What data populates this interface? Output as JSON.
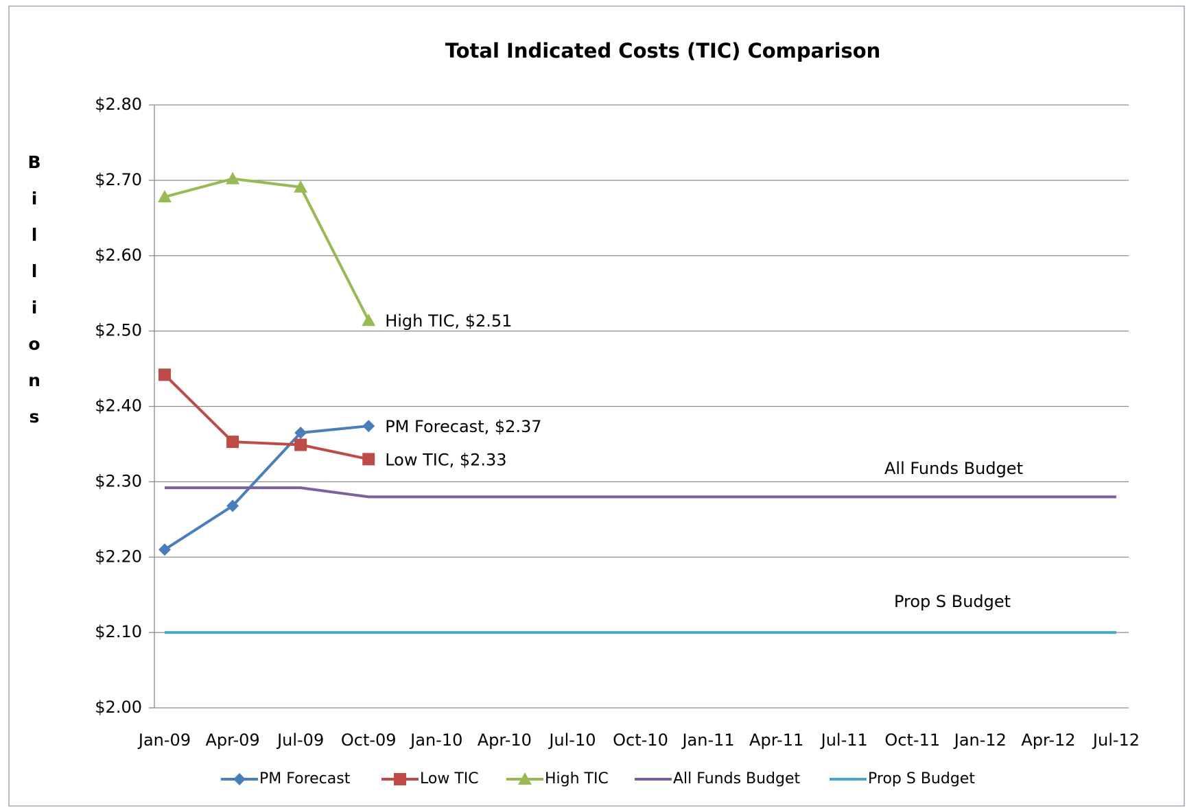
{
  "chart_data": {
    "type": "line",
    "title": "Total Indicated Costs (TIC) Comparison",
    "y_label": "Billions",
    "categories": [
      "Jan-09",
      "Apr-09",
      "Jul-09",
      "Oct-09",
      "Jan-10",
      "Apr-10",
      "Jul-10",
      "Oct-10",
      "Jan-11",
      "Apr-11",
      "Jul-11",
      "Oct-11",
      "Jan-12",
      "Apr-12",
      "Jul-12"
    ],
    "ylim": [
      2.0,
      2.8
    ],
    "yticks": [
      {
        "value": 2.0,
        "label": "$2.00"
      },
      {
        "value": 2.1,
        "label": "$2.10"
      },
      {
        "value": 2.2,
        "label": "$2.20"
      },
      {
        "value": 2.3,
        "label": "$2.30"
      },
      {
        "value": 2.4,
        "label": "$2.40"
      },
      {
        "value": 2.5,
        "label": "$2.50"
      },
      {
        "value": 2.6,
        "label": "$2.60"
      },
      {
        "value": 2.7,
        "label": "$2.70"
      },
      {
        "value": 2.8,
        "label": "$2.80"
      }
    ],
    "grid": true,
    "legend": "bottom",
    "series": [
      {
        "name": "PM Forecast",
        "color": "#4a7ebb",
        "marker": "diamond",
        "values": [
          2.21,
          2.268,
          2.365,
          2.374,
          null,
          null,
          null,
          null,
          null,
          null,
          null,
          null,
          null,
          null,
          null
        ],
        "value_labels": [
          null,
          null,
          null,
          "PM Forecast, $2.37",
          null,
          null,
          null,
          null,
          null,
          null,
          null,
          null,
          null,
          null,
          null
        ]
      },
      {
        "name": "Low TIC",
        "color": "#be4b48",
        "marker": "square",
        "values": [
          2.442,
          2.353,
          2.349,
          2.33,
          null,
          null,
          null,
          null,
          null,
          null,
          null,
          null,
          null,
          null,
          null
        ],
        "value_labels": [
          null,
          null,
          null,
          "Low TIC, $2.33",
          null,
          null,
          null,
          null,
          null,
          null,
          null,
          null,
          null,
          null,
          null
        ]
      },
      {
        "name": "High TIC",
        "color": "#98b954",
        "marker": "triangle",
        "values": [
          2.678,
          2.702,
          2.691,
          2.514,
          null,
          null,
          null,
          null,
          null,
          null,
          null,
          null,
          null,
          null,
          null
        ],
        "value_labels": [
          null,
          null,
          null,
          "High TIC, $2.51",
          null,
          null,
          null,
          null,
          null,
          null,
          null,
          null,
          null,
          null,
          null
        ]
      },
      {
        "name": "All Funds Budget",
        "color": "#7d60a0",
        "marker": "none",
        "values": [
          2.292,
          2.292,
          2.292,
          2.28,
          2.28,
          2.28,
          2.28,
          2.28,
          2.28,
          2.28,
          2.28,
          2.28,
          2.28,
          2.28,
          2.28
        ]
      },
      {
        "name": "Prop S Budget",
        "color": "#46aac5",
        "marker": "none",
        "values": [
          2.1,
          2.1,
          2.1,
          2.1,
          2.1,
          2.1,
          2.1,
          2.1,
          2.1,
          2.1,
          2.1,
          2.1,
          2.1,
          2.1,
          2.1
        ]
      }
    ]
  }
}
